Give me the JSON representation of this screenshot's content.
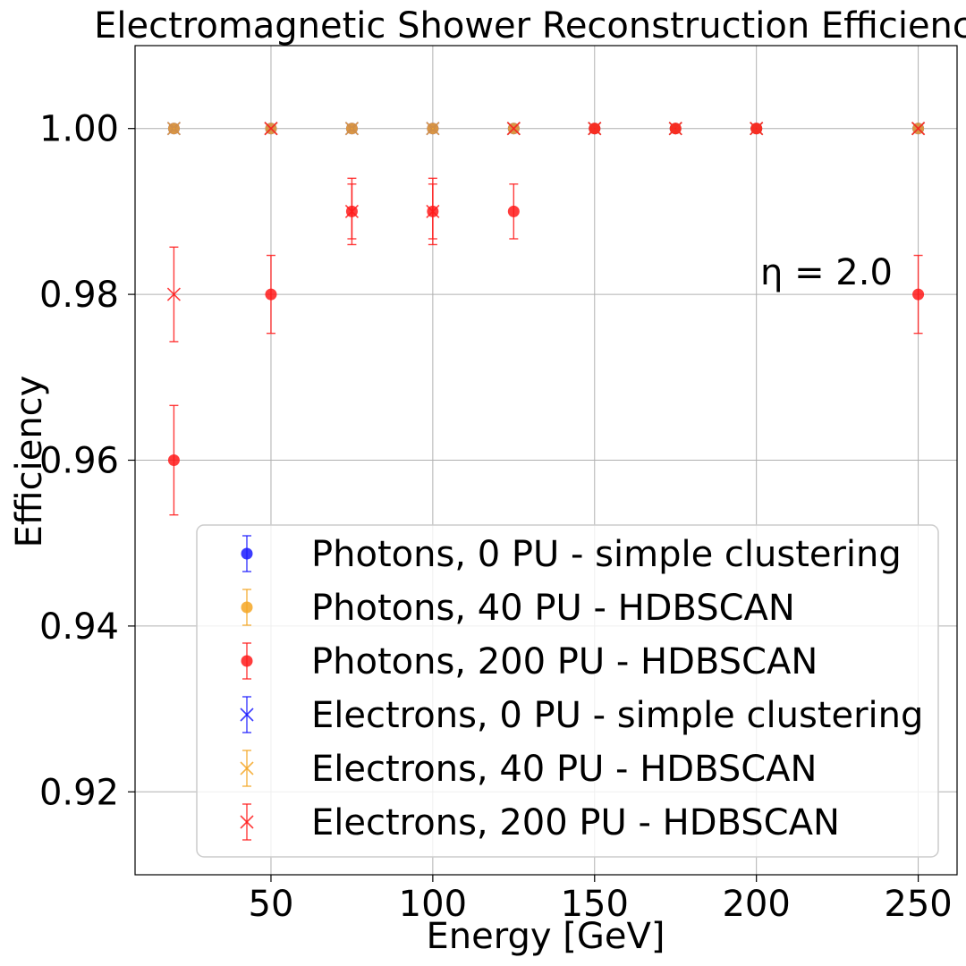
{
  "chart_data": {
    "type": "scatter",
    "title": "Electromagnetic Shower Reconstruction Efficienc",
    "xlabel": "Energy [GeV]",
    "ylabel": "Efficiency",
    "annotation": "η = 2.0",
    "xlim": [
      8,
      262
    ],
    "ylim": [
      0.91,
      1.01
    ],
    "xticks": [
      50,
      100,
      150,
      200,
      250
    ],
    "xtick_labels": [
      "50",
      "100",
      "150",
      "200",
      "250"
    ],
    "yticks": [
      0.92,
      0.94,
      0.96,
      0.98,
      1.0
    ],
    "ytick_labels": [
      "0.92",
      "0.94",
      "0.96",
      "0.98",
      "1.00"
    ],
    "grid": true,
    "legend_position": "bottom-right",
    "series": [
      {
        "name": "Photons, 0 PU - simple clustering",
        "marker": "circle",
        "color": "#1a1aff",
        "x": [
          20,
          50,
          75,
          100,
          125,
          150,
          175,
          200,
          250
        ],
        "y": [
          1.0,
          1.0,
          1.0,
          1.0,
          1.0,
          1.0,
          1.0,
          1.0,
          1.0
        ],
        "err": [
          0,
          0,
          0,
          0,
          0,
          0,
          0,
          0,
          0
        ]
      },
      {
        "name": "Photons, 40 PU - HDBSCAN",
        "marker": "circle",
        "color": "#f5a623",
        "x": [
          20,
          50,
          75,
          100,
          125,
          150,
          175,
          200,
          250
        ],
        "y": [
          1.0,
          1.0,
          1.0,
          1.0,
          1.0,
          1.0,
          1.0,
          1.0,
          1.0
        ],
        "err": [
          0,
          0,
          0,
          0,
          0,
          0,
          0,
          0,
          0
        ]
      },
      {
        "name": "Photons, 200 PU - HDBSCAN",
        "marker": "circle",
        "color": "#ff1a1a",
        "x": [
          20,
          50,
          75,
          100,
          125,
          150,
          175,
          200,
          250
        ],
        "y": [
          0.96,
          0.98,
          0.99,
          0.99,
          0.99,
          1.0,
          1.0,
          1.0,
          0.98
        ],
        "err": [
          0.0066,
          0.0047,
          0.0033,
          0.0033,
          0.0033,
          0,
          0,
          0,
          0.0047
        ]
      },
      {
        "name": "Electrons, 0 PU - simple clustering",
        "marker": "x",
        "color": "#1a1aff",
        "x": [
          20,
          50,
          75,
          100,
          125,
          150,
          175,
          200,
          250
        ],
        "y": [
          1.0,
          1.0,
          1.0,
          1.0,
          1.0,
          1.0,
          1.0,
          1.0,
          1.0
        ],
        "err": [
          0,
          0,
          0,
          0,
          0,
          0,
          0,
          0,
          0
        ]
      },
      {
        "name": "Electrons, 40 PU - HDBSCAN",
        "marker": "x",
        "color": "#f5a623",
        "x": [
          20,
          50,
          75,
          100,
          125,
          150,
          175,
          200,
          250
        ],
        "y": [
          1.0,
          1.0,
          1.0,
          1.0,
          1.0,
          1.0,
          1.0,
          1.0,
          1.0
        ],
        "err": [
          0,
          0,
          0,
          0,
          0,
          0,
          0,
          0,
          0
        ]
      },
      {
        "name": "Electrons, 200 PU - HDBSCAN",
        "marker": "x",
        "color": "#ff1a1a",
        "x": [
          20,
          50,
          75,
          100,
          125,
          150,
          175,
          200,
          250
        ],
        "y": [
          0.98,
          1.0,
          0.99,
          0.99,
          1.0,
          1.0,
          1.0,
          1.0,
          1.0
        ],
        "err": [
          0.0057,
          0,
          0.004,
          0.004,
          0,
          0,
          0,
          0,
          0
        ]
      }
    ]
  }
}
